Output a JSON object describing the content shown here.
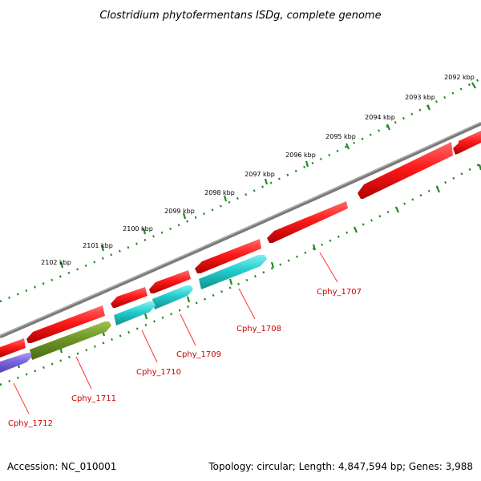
{
  "title": "Clostridium phytofermentans ISDg, complete genome",
  "footer": {
    "accession": "Accession: NC_010001",
    "summary": "Topology: circular; Length: 4,847,594 bp; Genes: 3,988"
  },
  "colors": {
    "backbone": "#7a7a7a",
    "ticks": "#1d8a1d",
    "label_text": "#cc0000",
    "callout_line": "#ff3333",
    "cds_red": "#ff1a1a",
    "cds_cyan": "#22cccc",
    "cds_olive": "#6e9626",
    "cds_purple": "#7a66dd"
  },
  "kbp_labels": [
    "2092 kbp",
    "2093 kbp",
    "2094 kbp",
    "2095 kbp",
    "2096 kbp",
    "2097 kbp",
    "2098 kbp",
    "2099 kbp",
    "2100 kbp",
    "2101 kbp",
    "2102 kbp"
  ],
  "gene_labels": [
    "Cphy_1707",
    "Cphy_1708",
    "Cphy_1709",
    "Cphy_1710",
    "Cphy_1711",
    "Cphy_1712"
  ]
}
